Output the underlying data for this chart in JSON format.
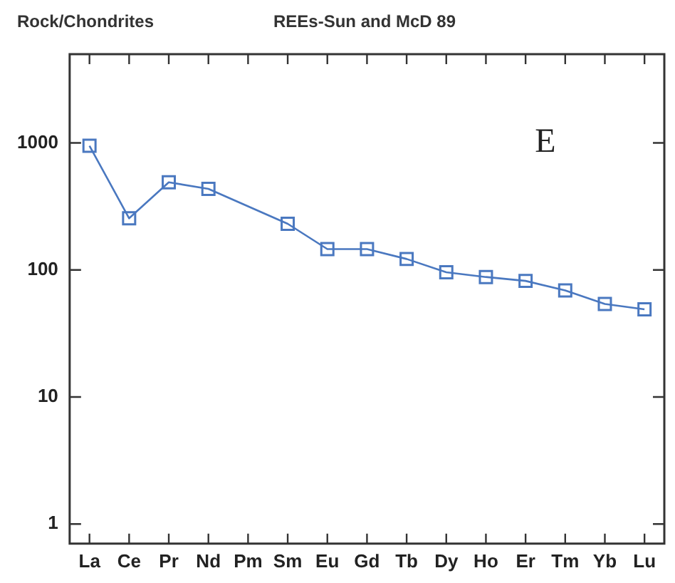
{
  "chart_data": {
    "type": "line",
    "title": "Rock/Chondrites",
    "subtitle": "REEs-Sun and McD 89",
    "annotations": [
      "E"
    ],
    "categories": [
      "La",
      "Ce",
      "Pr",
      "Nd",
      "Pm",
      "Sm",
      "Eu",
      "Gd",
      "Tb",
      "Dy",
      "Ho",
      "Er",
      "Tm",
      "Yb",
      "Lu"
    ],
    "series": [
      {
        "color": "#4a78c0",
        "values": [
          950,
          255,
          490,
          435,
          null,
          231,
          146,
          146,
          122,
          96,
          88,
          82,
          69,
          54,
          49
        ]
      }
    ],
    "log": "y",
    "ylim": [
      0.7,
      5000
    ],
    "yticks": [
      1,
      10,
      100,
      1000
    ],
    "grid": false,
    "legend": false,
    "marker": "square",
    "line_style": "solid"
  }
}
